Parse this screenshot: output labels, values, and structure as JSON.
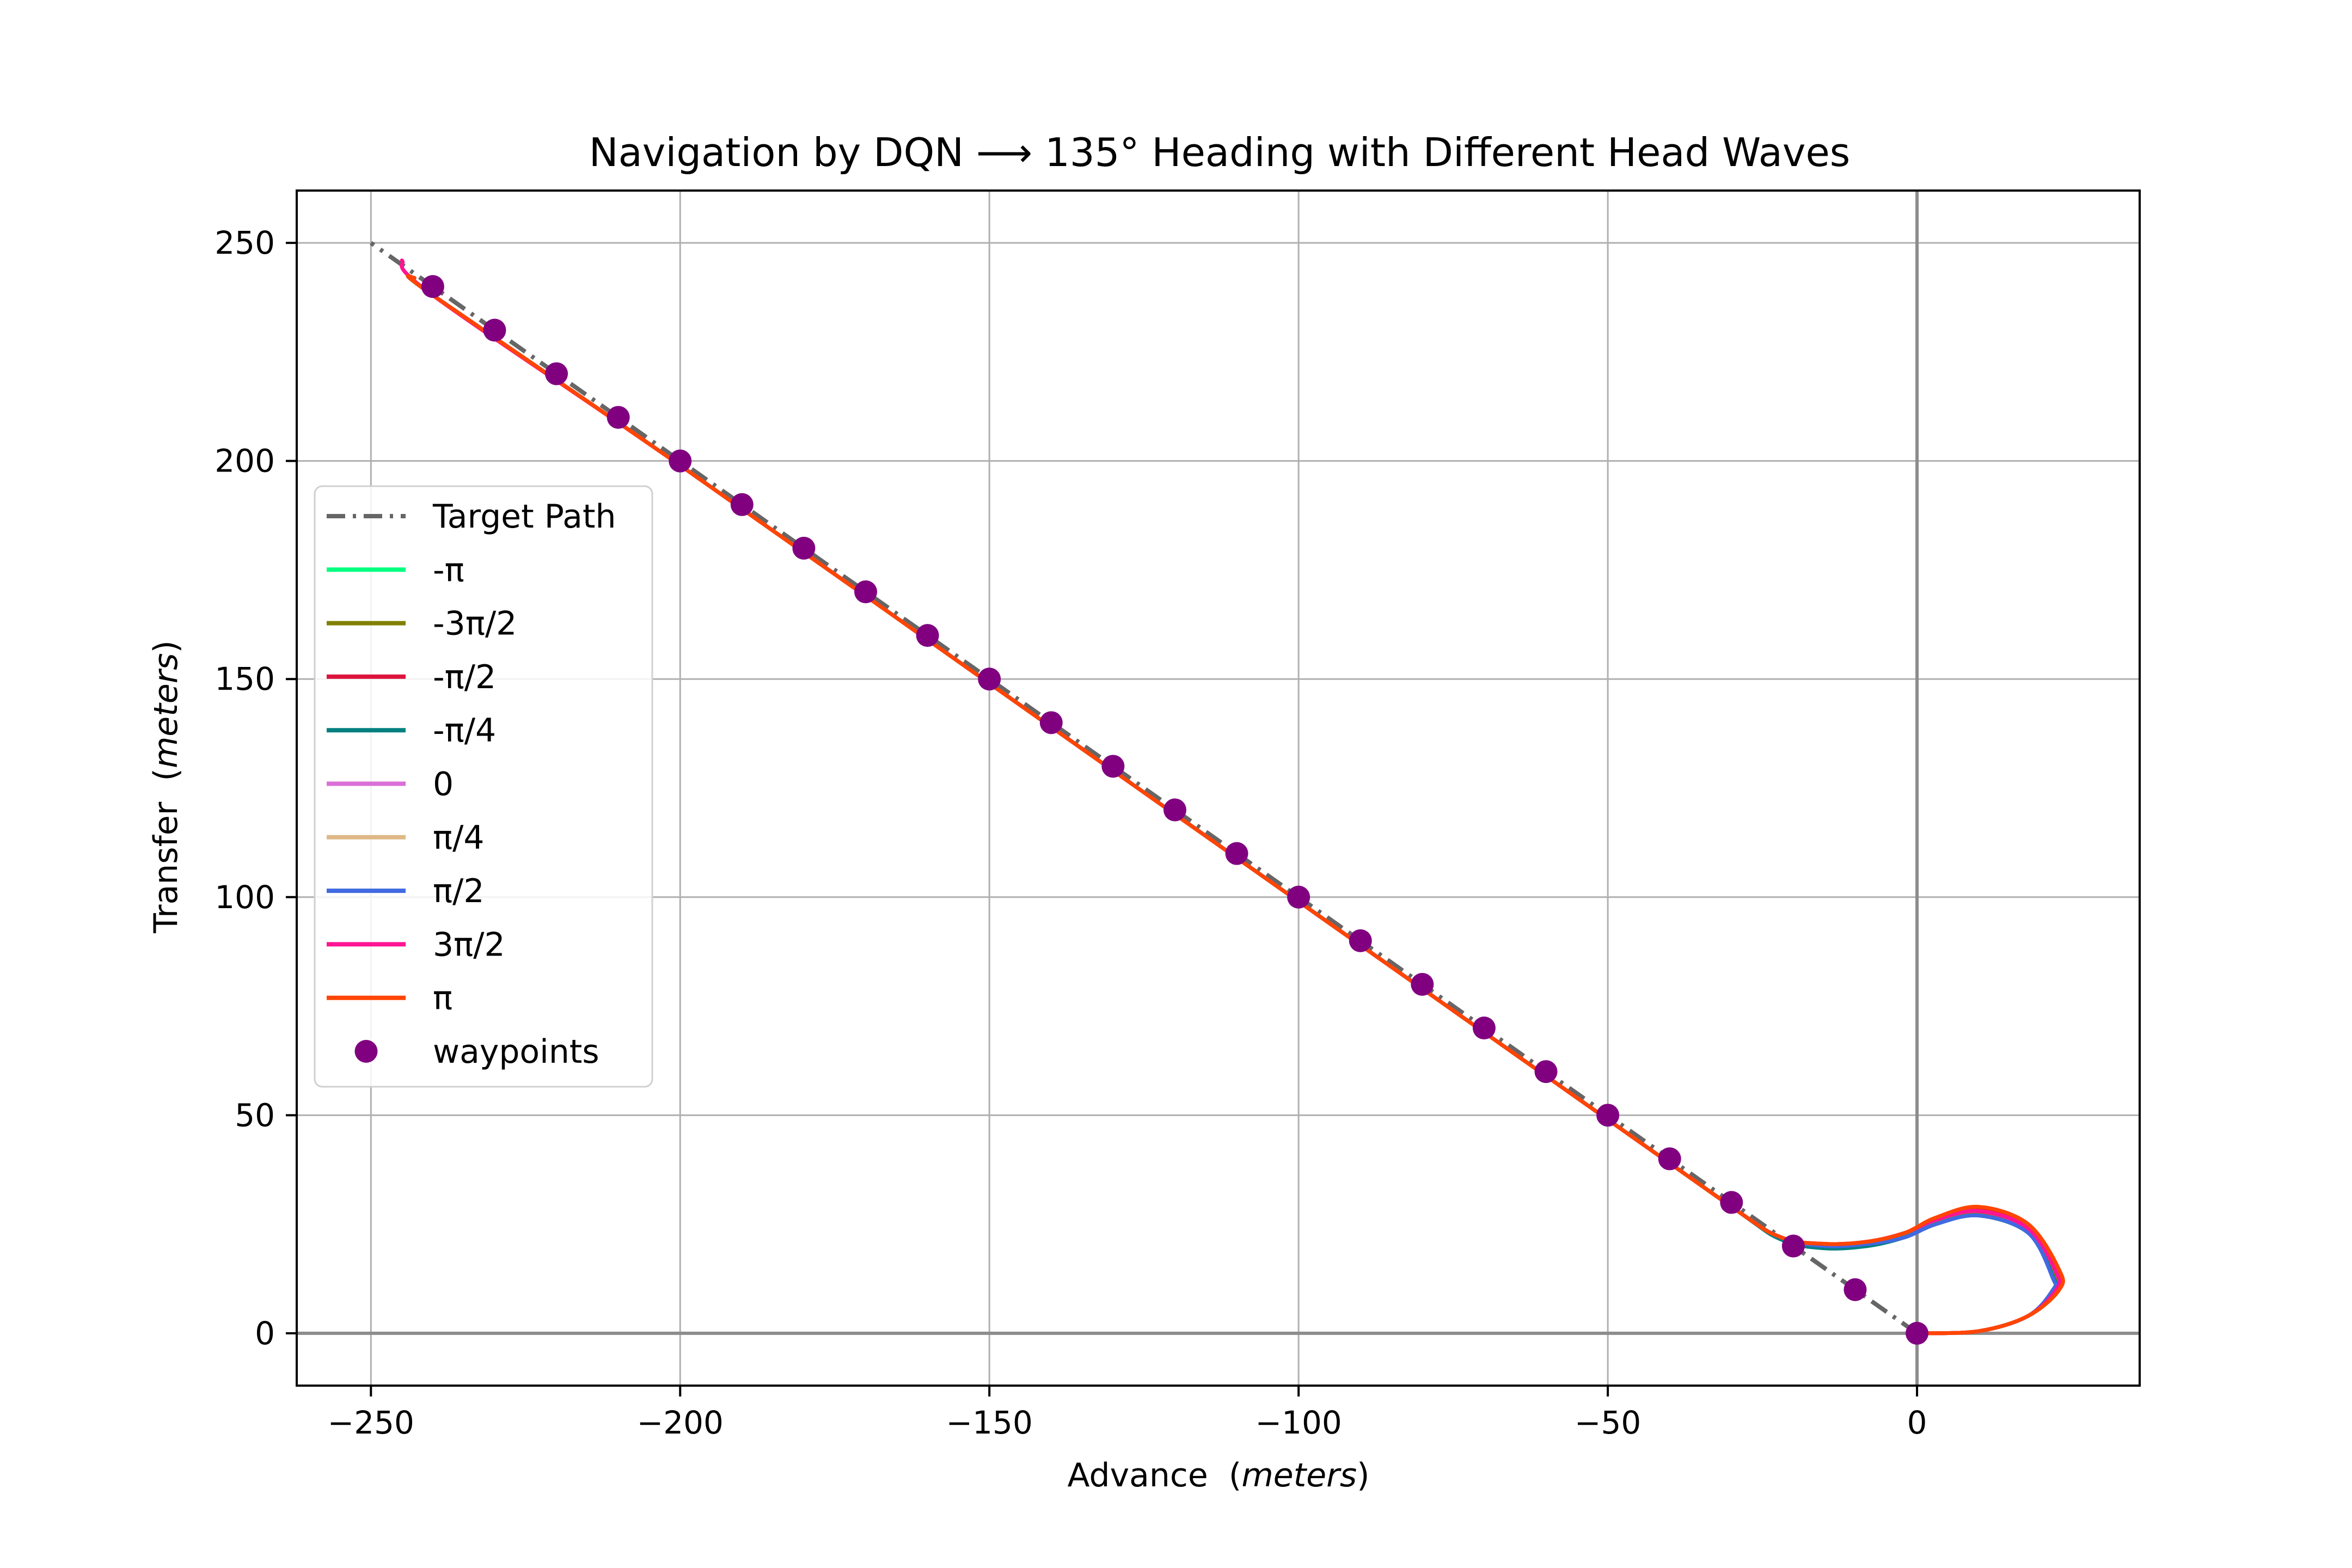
{
  "chart_data": {
    "type": "line",
    "title": "Navigation by DQN ⟶ 135° Heading with Different Head Waves",
    "xlabel": "Advance",
    "xlabel_unit": "meters",
    "ylabel": "Transfer",
    "ylabel_unit": "meters",
    "xlim": [
      -262,
      36
    ],
    "ylim": [
      -12,
      262
    ],
    "xticks": [
      -250,
      -200,
      -150,
      -100,
      -50,
      0
    ],
    "yticks": [
      0,
      50,
      100,
      150,
      200,
      250
    ],
    "xtick_labels": [
      "−250",
      "−200",
      "−150",
      "−100",
      "−50",
      "0"
    ],
    "ytick_labels": [
      "0",
      "50",
      "100",
      "150",
      "200",
      "250"
    ],
    "grid": true,
    "legend_position": "center-left",
    "target_path": {
      "name": "Target Path",
      "color": "#666666",
      "style": "dash-dot",
      "x": [
        0,
        -250
      ],
      "y": [
        0,
        250
      ]
    },
    "waypoints": {
      "name": "waypoints",
      "color": "#800080",
      "x": [
        0,
        -10,
        -20,
        -30,
        -40,
        -50,
        -60,
        -70,
        -80,
        -90,
        -100,
        -110,
        -120,
        -130,
        -140,
        -150,
        -160,
        -170,
        -180,
        -190,
        -200,
        -210,
        -220,
        -230,
        -240
      ],
      "y": [
        0,
        10,
        20,
        30,
        40,
        50,
        60,
        70,
        80,
        90,
        100,
        110,
        120,
        130,
        140,
        150,
        160,
        170,
        180,
        190,
        200,
        210,
        220,
        230,
        240
      ]
    },
    "series": [
      {
        "name": "-π",
        "color": "#00ff7f",
        "x": [
          0,
          10,
          18,
          22.5,
          22.5,
          18,
          10,
          3,
          -2,
          -8,
          -15,
          -22,
          -30,
          -60,
          -100,
          -150,
          -200,
          -240,
          -243
        ],
        "y": [
          0,
          0.5,
          4,
          10,
          14,
          24,
          28,
          26,
          23,
          21,
          20.5,
          22,
          29,
          59,
          99,
          149,
          199,
          238,
          242
        ]
      },
      {
        "name": "-3π/2",
        "color": "#808000",
        "x": [
          0,
          10,
          18,
          22.3,
          22.3,
          18,
          10,
          3,
          -2,
          -8,
          -15,
          -22,
          -30,
          -60,
          -100,
          -150,
          -200,
          -240,
          -243
        ],
        "y": [
          0,
          0.5,
          4,
          10,
          13.5,
          23.5,
          27.5,
          25.5,
          22.5,
          20.5,
          20,
          22,
          29,
          59,
          99,
          149,
          199,
          238,
          242
        ]
      },
      {
        "name": "-π/2",
        "color": "#dc143c",
        "x": [
          0,
          10,
          18,
          22.7,
          22.7,
          18,
          10,
          3,
          -2,
          -8,
          -15,
          -22,
          -30,
          -60,
          -100,
          -150,
          -200,
          -240,
          -243
        ],
        "y": [
          0,
          0.5,
          4,
          10,
          14,
          24.5,
          28.5,
          26,
          23,
          21,
          20.5,
          22,
          29,
          59,
          99,
          149,
          199,
          238,
          242
        ]
      },
      {
        "name": "-π/4",
        "color": "#008080",
        "x": [
          0,
          10,
          18,
          22,
          22,
          18,
          10,
          3,
          -2,
          -8,
          -15,
          -22,
          -30,
          -60,
          -100,
          -150,
          -200,
          -240,
          -243
        ],
        "y": [
          0,
          0.5,
          4,
          10,
          13,
          23,
          27,
          25,
          22,
          20,
          19.5,
          21.5,
          29,
          59,
          99,
          149,
          199,
          238,
          242
        ]
      },
      {
        "name": "0",
        "color": "#da70d6",
        "x": [
          0,
          10,
          18,
          22.5,
          22.5,
          18,
          10,
          3,
          -2,
          -8,
          -15,
          -22,
          -30,
          -60,
          -100,
          -150,
          -200,
          -240,
          -243
        ],
        "y": [
          0,
          0.5,
          4,
          10,
          14,
          24,
          28,
          26,
          23,
          21,
          20.5,
          22,
          29,
          59,
          99,
          149,
          199,
          238,
          242
        ]
      },
      {
        "name": "π/4",
        "color": "#deb887",
        "x": [
          0,
          10,
          18,
          22.5,
          22.5,
          18,
          10,
          3,
          -2,
          -8,
          -15,
          -22,
          -30,
          -60,
          -100,
          -150,
          -200,
          -240,
          -243
        ],
        "y": [
          0,
          0.5,
          4,
          10,
          14,
          24,
          28,
          26,
          23,
          21,
          20.5,
          22,
          29,
          59,
          99,
          149,
          199,
          238,
          242
        ]
      },
      {
        "name": "π/2",
        "color": "#4169e1",
        "x": [
          0,
          10,
          18,
          22,
          22,
          18,
          10,
          3,
          -2,
          -8,
          -15,
          -22,
          -30,
          -60,
          -100,
          -150,
          -200,
          -240,
          -243
        ],
        "y": [
          0,
          0.5,
          4,
          10,
          12.5,
          23,
          27,
          25,
          22,
          20.5,
          20,
          22,
          29,
          59,
          99,
          149,
          199,
          238,
          242
        ]
      },
      {
        "name": "3π/2",
        "color": "#ff1493",
        "x": [
          0,
          10,
          18,
          22.5,
          22.5,
          18,
          10,
          3,
          -2,
          -8,
          -15,
          -22,
          -30,
          -60,
          -100,
          -150,
          -200,
          -240,
          -245
        ],
        "y": [
          0,
          0.5,
          4,
          10,
          14,
          24,
          28,
          26,
          23,
          21,
          20.5,
          22,
          29,
          59,
          99,
          149,
          199,
          238,
          246
        ]
      },
      {
        "name": "π",
        "color": "#ff4500",
        "x": [
          0,
          10,
          18,
          23,
          23,
          18,
          10,
          3,
          -2,
          -8,
          -15,
          -22,
          -30,
          -60,
          -100,
          -150,
          -200,
          -240,
          -243
        ],
        "y": [
          0,
          0.5,
          4,
          10,
          14.5,
          25,
          29,
          26.5,
          23,
          21,
          20.5,
          22,
          29,
          59,
          99,
          149,
          199,
          238,
          242
        ]
      }
    ]
  }
}
